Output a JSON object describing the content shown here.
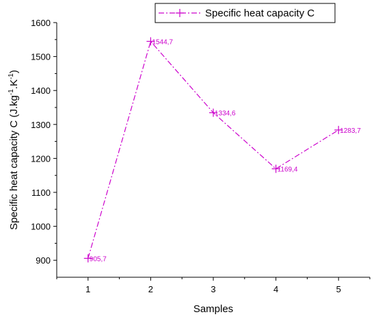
{
  "chart_data": {
    "type": "line",
    "x": [
      1,
      2,
      3,
      4,
      5
    ],
    "series": [
      {
        "name": "Specific heat capacity C",
        "values": [
          905.7,
          1544.7,
          1334.6,
          1169.4,
          1283.7
        ],
        "labels": [
          "905,7",
          "1544,7",
          "1334,6",
          "1169,4",
          "1283,7"
        ],
        "color": "#cc00cc",
        "line_style": "dash-dot",
        "marker": "plus"
      }
    ],
    "xlabel": "Samples",
    "ylabel_parts": [
      "Specific heat capacity C (J.kg",
      "-1",
      ".K",
      "-1",
      ")"
    ],
    "xlim": [
      0.5,
      5.5
    ],
    "ylim": [
      850,
      1600
    ],
    "xticks": [
      1,
      2,
      3,
      4,
      5
    ],
    "xtick_labels": [
      "1",
      "2",
      "3",
      "4",
      "5"
    ],
    "yticks": [
      900,
      1000,
      1100,
      1200,
      1300,
      1400,
      1500,
      1600
    ],
    "ytick_labels": [
      "900",
      "1000",
      "1100",
      "1200",
      "1300",
      "1400",
      "1500",
      "1600"
    ],
    "grid": false,
    "legend_position": "top-right"
  }
}
